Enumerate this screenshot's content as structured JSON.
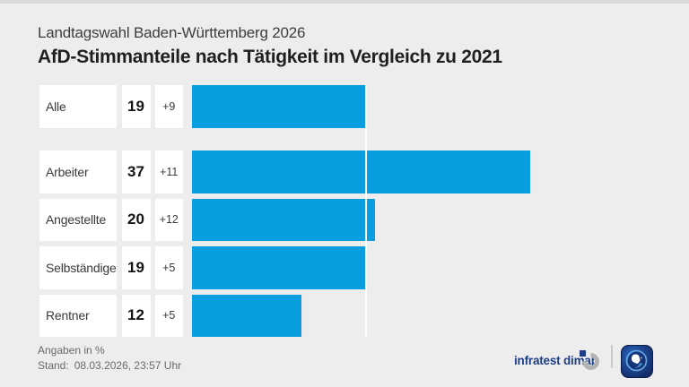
{
  "header": {
    "subtitle": "Landtagswahl Baden-Württemberg 2026",
    "title": "AfD-Stimmanteile nach Tätigkeit im Vergleich zu 2021"
  },
  "chart_data": {
    "type": "bar",
    "orientation": "horizontal",
    "categories": [
      "Alle",
      "Arbeiter",
      "Angestellte",
      "Selbständige",
      "Rentner"
    ],
    "values": [
      19,
      37,
      20,
      19,
      12
    ],
    "changes": [
      "+9",
      "+11",
      "+12",
      "+5",
      "+5"
    ],
    "unit": "%",
    "reference_line_value": 19,
    "xlim": [
      0,
      50
    ],
    "bar_color": "#089edf",
    "legend": "none",
    "grid": "off"
  },
  "footer": {
    "note": "Angaben in %",
    "stand_label": "Stand:",
    "stand_value": "08.03.2026, 23:57 Uhr",
    "source": "infratest dimap",
    "brand_icon": "tagesschau-globe-icon"
  },
  "colors": {
    "background": "#ededed",
    "bar_blue": "#089edf",
    "brand_navy": "#1e3f87",
    "box_white": "#ffffff"
  }
}
